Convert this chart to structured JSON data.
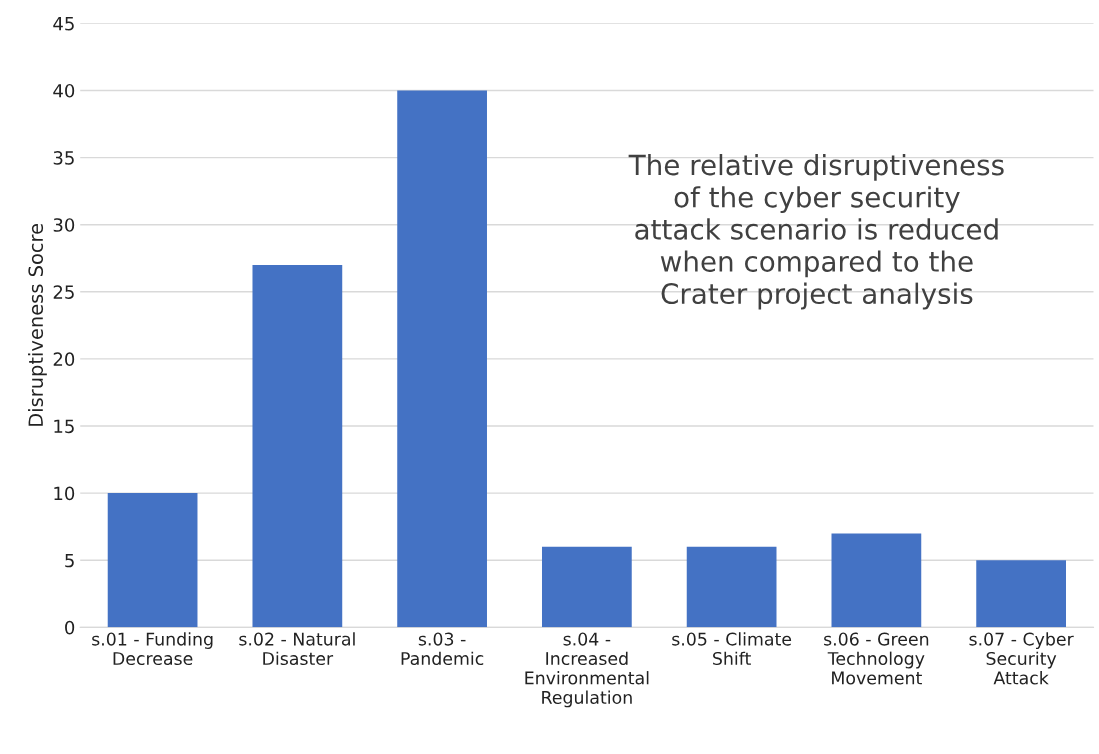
{
  "chart_data": {
    "type": "bar",
    "ylabel": "Disruptiveness Socre",
    "categories": [
      "s.01 - Funding\nDecrease",
      "s.02 - Natural\nDisaster",
      "s.03 -\nPandemic",
      "s.04 -\nIncreased\nEnvironmental\nRegulation",
      "s.05 - Climate\nShift",
      "s.06 - Green\nTechnology\nMovement",
      "s.07 - Cyber\nSecurity\nAttack"
    ],
    "values": [
      10,
      27,
      40,
      6,
      6,
      7,
      5
    ],
    "color": "#4472c4",
    "ylim": [
      0,
      45
    ],
    "yticks": [
      0,
      5,
      10,
      15,
      20,
      25,
      30,
      35,
      40,
      45
    ],
    "grid": "y",
    "annotations": [
      "The relative disruptiveness\nof the cyber security\nattack scenario is reduced\nwhen compared to the\nCrater project analysis"
    ]
  }
}
